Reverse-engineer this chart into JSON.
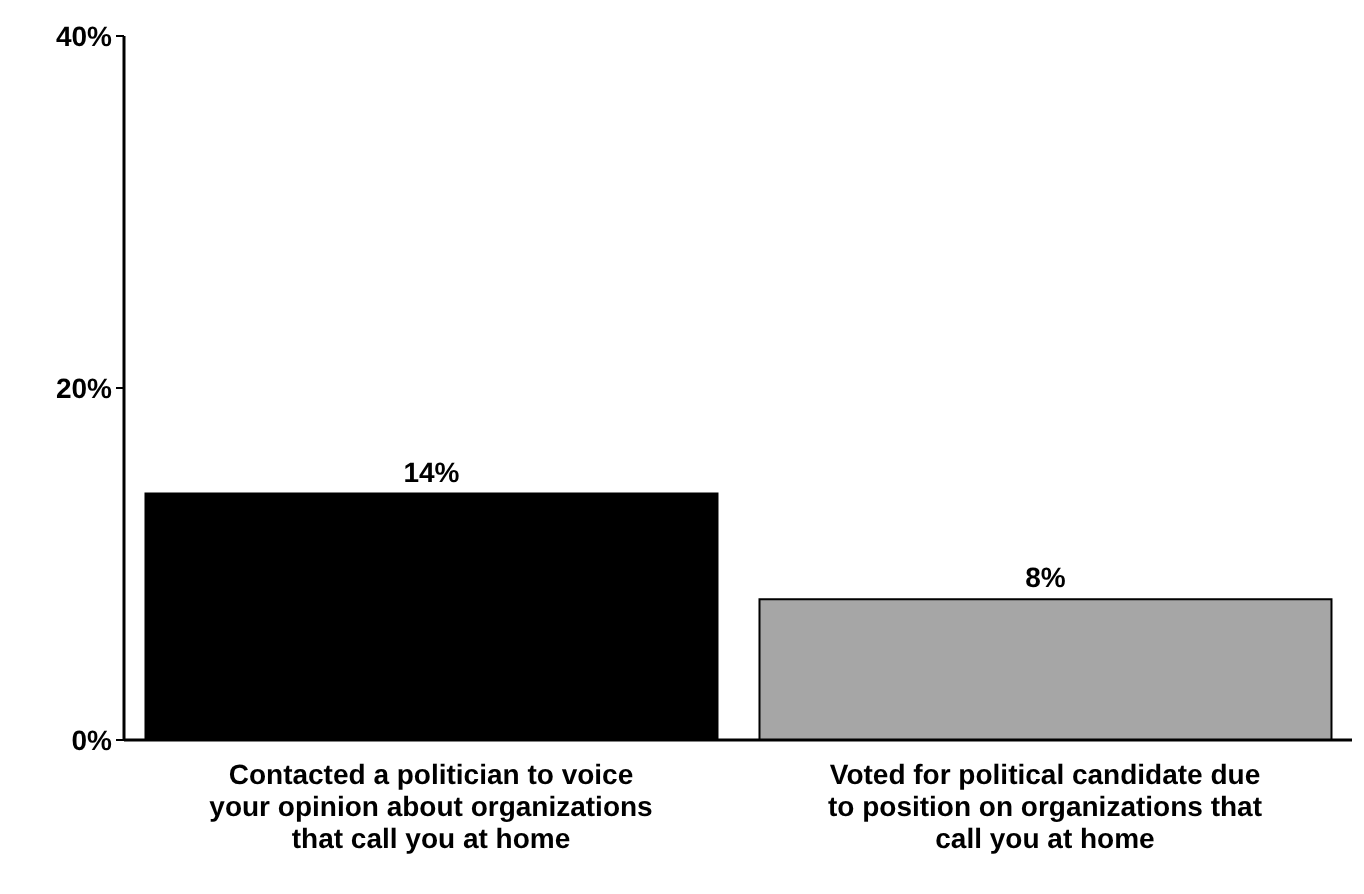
{
  "chart_data": {
    "type": "bar",
    "categories": [
      "Contacted a politician to voice your opinion about organizations that call you at home",
      "Voted for political candidate due to position on organizations that call you at home"
    ],
    "values": [
      14,
      8
    ],
    "colors": [
      "#000000",
      "#a6a6a6"
    ],
    "value_labels": [
      "14%",
      "8%"
    ],
    "ylim": [
      0,
      40
    ],
    "yticks": [
      {
        "value": 0,
        "label": "0%"
      },
      {
        "value": 20,
        "label": "20%"
      },
      {
        "value": 40,
        "label": "40%"
      }
    ],
    "grid": false
  }
}
